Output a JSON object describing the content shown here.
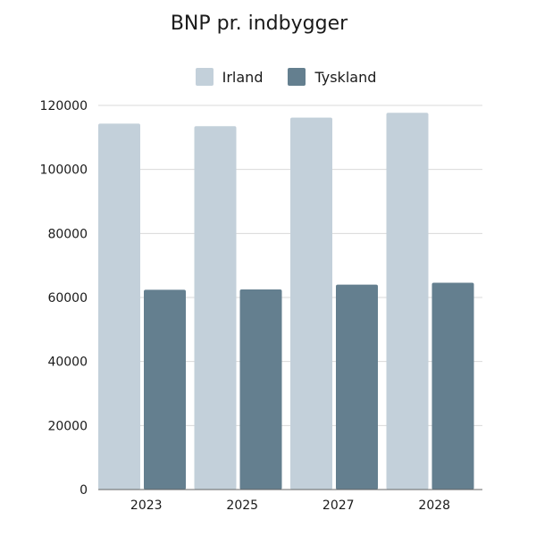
{
  "chart_data": {
    "type": "bar",
    "title": "BNP pr. indbygger",
    "xlabel": "",
    "ylabel": "",
    "categories": [
      "2023",
      "2025",
      "2027",
      "2028"
    ],
    "series": [
      {
        "name": "Irland",
        "values": [
          114300,
          113500,
          116200,
          117700
        ],
        "color": "#c3d0da"
      },
      {
        "name": "Tyskland",
        "values": [
          62400,
          62500,
          64000,
          64600
        ],
        "color": "#647f8f"
      }
    ],
    "ylim": [
      0,
      120000
    ],
    "yticks": [
      "0",
      "20000",
      "40000",
      "60000",
      "80000",
      "100000",
      "120000"
    ],
    "grid": true,
    "legend_position": "top-center",
    "gridline_color": "#d9d9d9",
    "axis_color": "#666666"
  }
}
